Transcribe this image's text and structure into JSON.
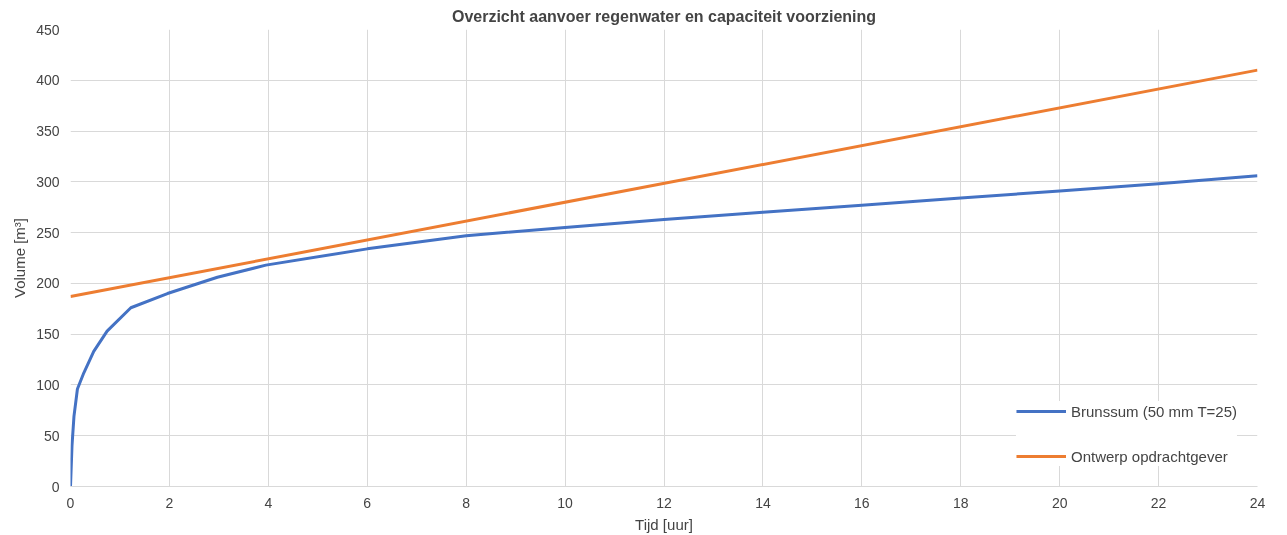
{
  "chart_data": {
    "type": "line",
    "title": "Overzicht aanvoer regenwater en capaciteit voorziening",
    "xlabel": "Tijd [uur]",
    "ylabel": "Volume [m³]",
    "series": [
      {
        "name": "Brunssum (50 mm T=25)",
        "color": "#4472c4",
        "x": [
          0,
          0.03,
          0.07,
          0.14,
          0.27,
          0.47,
          0.74,
          1.22,
          1.96,
          2.97,
          3.95,
          6,
          8,
          10,
          12,
          14,
          16,
          18,
          20,
          22,
          24
        ],
        "values": [
          0,
          40,
          69,
          96,
          112,
          133,
          153,
          176,
          190,
          206,
          218,
          234,
          247,
          255,
          263,
          270,
          277,
          284,
          291,
          298,
          306
        ]
      },
      {
        "name": "Ontwerp opdrachtgever",
        "color": "#ed7d31",
        "x": [
          0,
          24
        ],
        "values": [
          187,
          410
        ]
      }
    ],
    "xlim": [
      0,
      24
    ],
    "xticks": [
      0,
      2,
      4,
      6,
      8,
      10,
      12,
      14,
      16,
      18,
      20,
      22,
      24
    ],
    "ylim": [
      0,
      450
    ],
    "yticks": [
      0,
      50,
      100,
      150,
      200,
      250,
      300,
      350,
      400,
      450
    ],
    "grid": true,
    "legend": "bottom right",
    "marker": "none",
    "line_style": "solid"
  }
}
